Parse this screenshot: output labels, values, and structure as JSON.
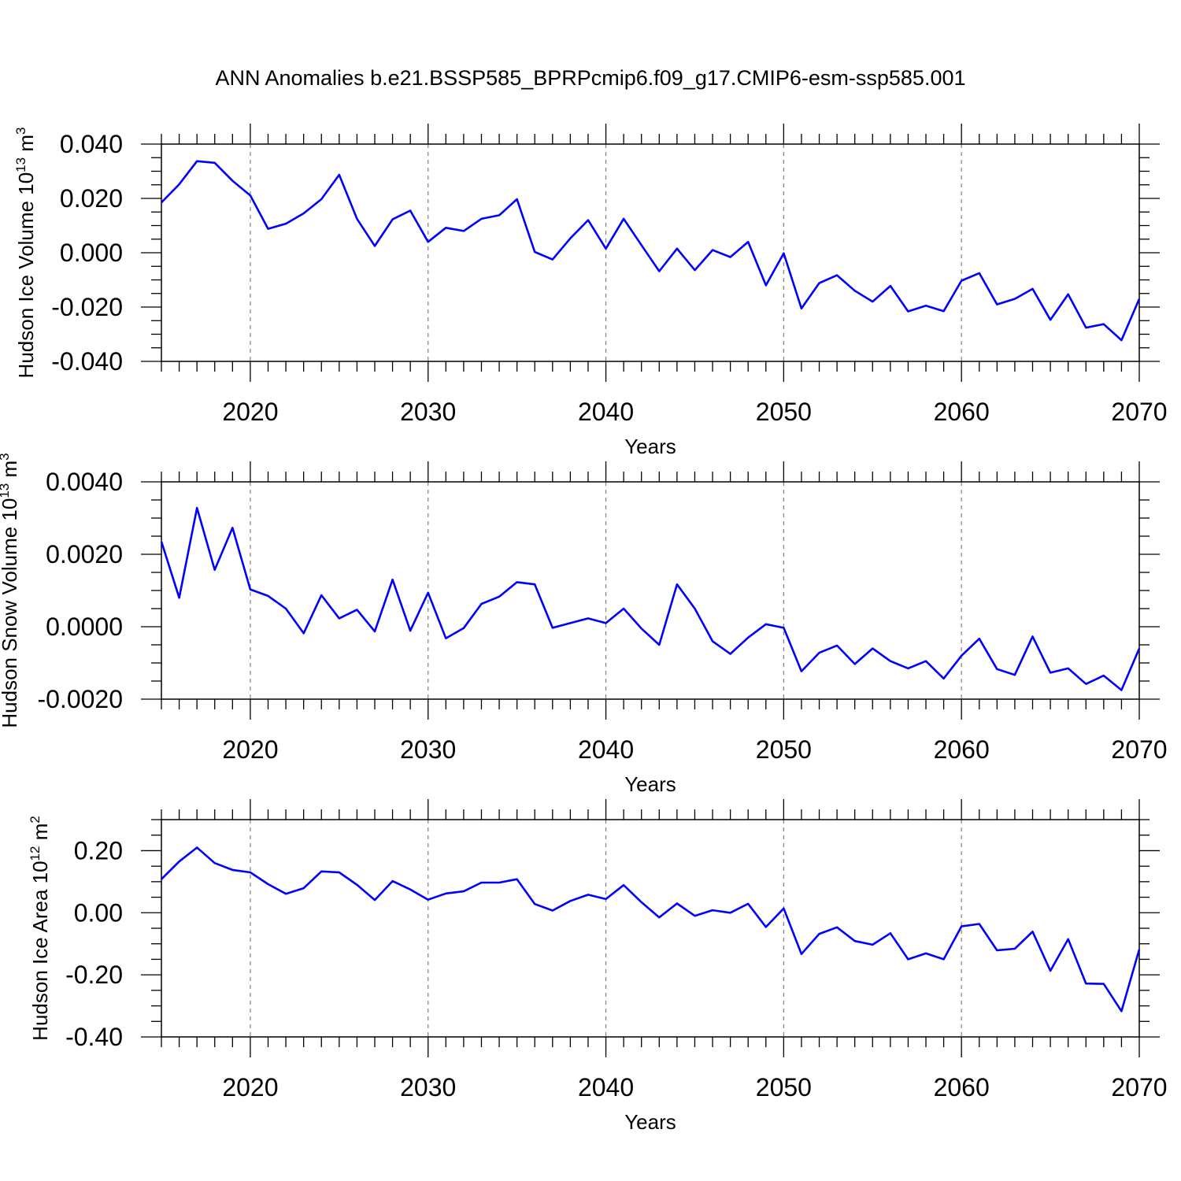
{
  "title": "ANN Anomalies b.e21.BSSP585_BPRPcmip6.f09_g17.CMIP6-esm-ssp585.001",
  "colors": {
    "line": "#0000ff",
    "axis": "#000000",
    "grid": "#808080"
  },
  "chart_data": [
    {
      "type": "line",
      "title": "",
      "xlabel": "Years",
      "ylabel": "Hudson Ice Volume 10",
      "ylabel_exponent": "13",
      "ylabel_unit": " m",
      "ylabel_unit_exponent": "3",
      "xlim": [
        2015,
        2070
      ],
      "ylim": [
        -0.04,
        0.04
      ],
      "xticks": [
        2020,
        2030,
        2040,
        2050,
        2060,
        2070
      ],
      "xtick_labels": [
        "2020",
        "2030",
        "2040",
        "2050",
        "2060",
        "2070"
      ],
      "yticks": [
        -0.04,
        -0.02,
        0.0,
        0.02,
        0.04
      ],
      "ytick_labels": [
        "-0.040",
        "-0.020",
        "0.000",
        "0.020",
        "0.040"
      ],
      "grid": "vertical dashed at major x ticks",
      "x": [
        2015,
        2016,
        2017,
        2018,
        2019,
        2020,
        2021,
        2022,
        2023,
        2024,
        2025,
        2026,
        2027,
        2028,
        2029,
        2030,
        2031,
        2032,
        2033,
        2034,
        2035,
        2036,
        2037,
        2038,
        2039,
        2040,
        2041,
        2042,
        2043,
        2044,
        2045,
        2046,
        2047,
        2048,
        2049,
        2050,
        2051,
        2052,
        2053,
        2054,
        2055,
        2056,
        2057,
        2058,
        2059,
        2060,
        2061,
        2062,
        2063,
        2064,
        2065,
        2066,
        2067,
        2068,
        2069,
        2070
      ],
      "series": [
        {
          "values": [
            0.0185,
            0.0252,
            0.0337,
            0.0331,
            0.0265,
            0.0211,
            0.0088,
            0.0107,
            0.0145,
            0.0197,
            0.0287,
            0.0125,
            0.0025,
            0.0123,
            0.0155,
            0.004,
            0.0092,
            0.008,
            0.0125,
            0.0138,
            0.0197,
            0.0003,
            -0.0025,
            0.0053,
            0.012,
            0.0015,
            0.0125,
            0.0028,
            -0.0068,
            0.0015,
            -0.0064,
            0.001,
            -0.0016,
            0.004,
            -0.012,
            -0.0002,
            -0.0205,
            -0.0112,
            -0.0083,
            -0.014,
            -0.018,
            -0.0122,
            -0.0216,
            -0.0195,
            -0.0215,
            -0.0103,
            -0.0075,
            -0.019,
            -0.017,
            -0.0133,
            -0.0247,
            -0.0153,
            -0.0276,
            -0.0263,
            -0.0322,
            -0.017
          ]
        }
      ]
    },
    {
      "type": "line",
      "title": "",
      "xlabel": "Years",
      "ylabel": "Hudson Snow Volume 10",
      "ylabel_exponent": "13",
      "ylabel_unit": " m",
      "ylabel_unit_exponent": "3",
      "xlim": [
        2015,
        2070
      ],
      "ylim": [
        -0.002,
        0.004
      ],
      "xticks": [
        2020,
        2030,
        2040,
        2050,
        2060,
        2070
      ],
      "xtick_labels": [
        "2020",
        "2030",
        "2040",
        "2050",
        "2060",
        "2070"
      ],
      "yticks": [
        -0.002,
        0.0,
        0.002,
        0.004
      ],
      "ytick_labels": [
        "-0.0020",
        "0.0000",
        "0.0020",
        "0.0040"
      ],
      "grid": "vertical dashed at major x ticks",
      "x": [
        2015,
        2016,
        2017,
        2018,
        2019,
        2020,
        2021,
        2022,
        2023,
        2024,
        2025,
        2026,
        2027,
        2028,
        2029,
        2030,
        2031,
        2032,
        2033,
        2034,
        2035,
        2036,
        2037,
        2038,
        2039,
        2040,
        2041,
        2042,
        2043,
        2044,
        2045,
        2046,
        2047,
        2048,
        2049,
        2050,
        2051,
        2052,
        2053,
        2054,
        2055,
        2056,
        2057,
        2058,
        2059,
        2060,
        2061,
        2062,
        2063,
        2064,
        2065,
        2066,
        2067,
        2068,
        2069,
        2070
      ],
      "series": [
        {
          "values": [
            0.00235,
            0.0008,
            0.00328,
            0.00157,
            0.00273,
            0.00103,
            0.00085,
            0.0005,
            -0.00018,
            0.00087,
            0.00023,
            0.00047,
            -0.00013,
            0.0013,
            -0.00011,
            0.00094,
            -0.00032,
            -4e-05,
            0.00063,
            0.00083,
            0.00123,
            0.00117,
            -3e-05,
            0.0001,
            0.00023,
            0.0001,
            0.0005,
            -5e-05,
            -0.0005,
            0.00117,
            0.0005,
            -0.0004,
            -0.00075,
            -0.0003,
            7e-05,
            -3e-05,
            -0.00123,
            -0.00072,
            -0.00052,
            -0.00103,
            -0.0006,
            -0.00095,
            -0.00115,
            -0.00095,
            -0.00143,
            -0.0008,
            -0.00033,
            -0.00117,
            -0.00133,
            -0.00027,
            -0.00127,
            -0.00115,
            -0.00158,
            -0.00135,
            -0.00175,
            -0.0006
          ]
        }
      ]
    },
    {
      "type": "line",
      "title": "",
      "xlabel": "Years",
      "ylabel": "Hudson Ice Area 10",
      "ylabel_exponent": "12",
      "ylabel_unit": " m",
      "ylabel_unit_exponent": "2",
      "xlim": [
        2015,
        2070
      ],
      "ylim": [
        -0.4,
        0.3
      ],
      "xticks": [
        2020,
        2030,
        2040,
        2050,
        2060,
        2070
      ],
      "xtick_labels": [
        "2020",
        "2030",
        "2040",
        "2050",
        "2060",
        "2070"
      ],
      "yticks": [
        -0.4,
        -0.2,
        0.0,
        0.2
      ],
      "ytick_labels": [
        "-0.40",
        "-0.20",
        "0.00",
        "0.20"
      ],
      "grid": "vertical dashed at major x ticks",
      "x": [
        2015,
        2016,
        2017,
        2018,
        2019,
        2020,
        2021,
        2022,
        2023,
        2024,
        2025,
        2026,
        2027,
        2028,
        2029,
        2030,
        2031,
        2032,
        2033,
        2034,
        2035,
        2036,
        2037,
        2038,
        2039,
        2040,
        2041,
        2042,
        2043,
        2044,
        2045,
        2046,
        2047,
        2048,
        2049,
        2050,
        2051,
        2052,
        2053,
        2054,
        2055,
        2056,
        2057,
        2058,
        2059,
        2060,
        2061,
        2062,
        2063,
        2064,
        2065,
        2066,
        2067,
        2068,
        2069,
        2070
      ],
      "series": [
        {
          "values": [
            0.108,
            0.165,
            0.21,
            0.16,
            0.138,
            0.13,
            0.092,
            0.061,
            0.079,
            0.133,
            0.13,
            0.09,
            0.041,
            0.102,
            0.075,
            0.042,
            0.062,
            0.069,
            0.097,
            0.097,
            0.108,
            0.028,
            0.007,
            0.038,
            0.058,
            0.044,
            0.089,
            0.034,
            -0.015,
            0.03,
            -0.01,
            0.008,
            0.0,
            0.029,
            -0.046,
            0.014,
            -0.133,
            -0.068,
            -0.047,
            -0.091,
            -0.103,
            -0.066,
            -0.15,
            -0.131,
            -0.15,
            -0.044,
            -0.036,
            -0.121,
            -0.116,
            -0.061,
            -0.187,
            -0.085,
            -0.228,
            -0.229,
            -0.317,
            -0.118
          ]
        }
      ]
    }
  ]
}
